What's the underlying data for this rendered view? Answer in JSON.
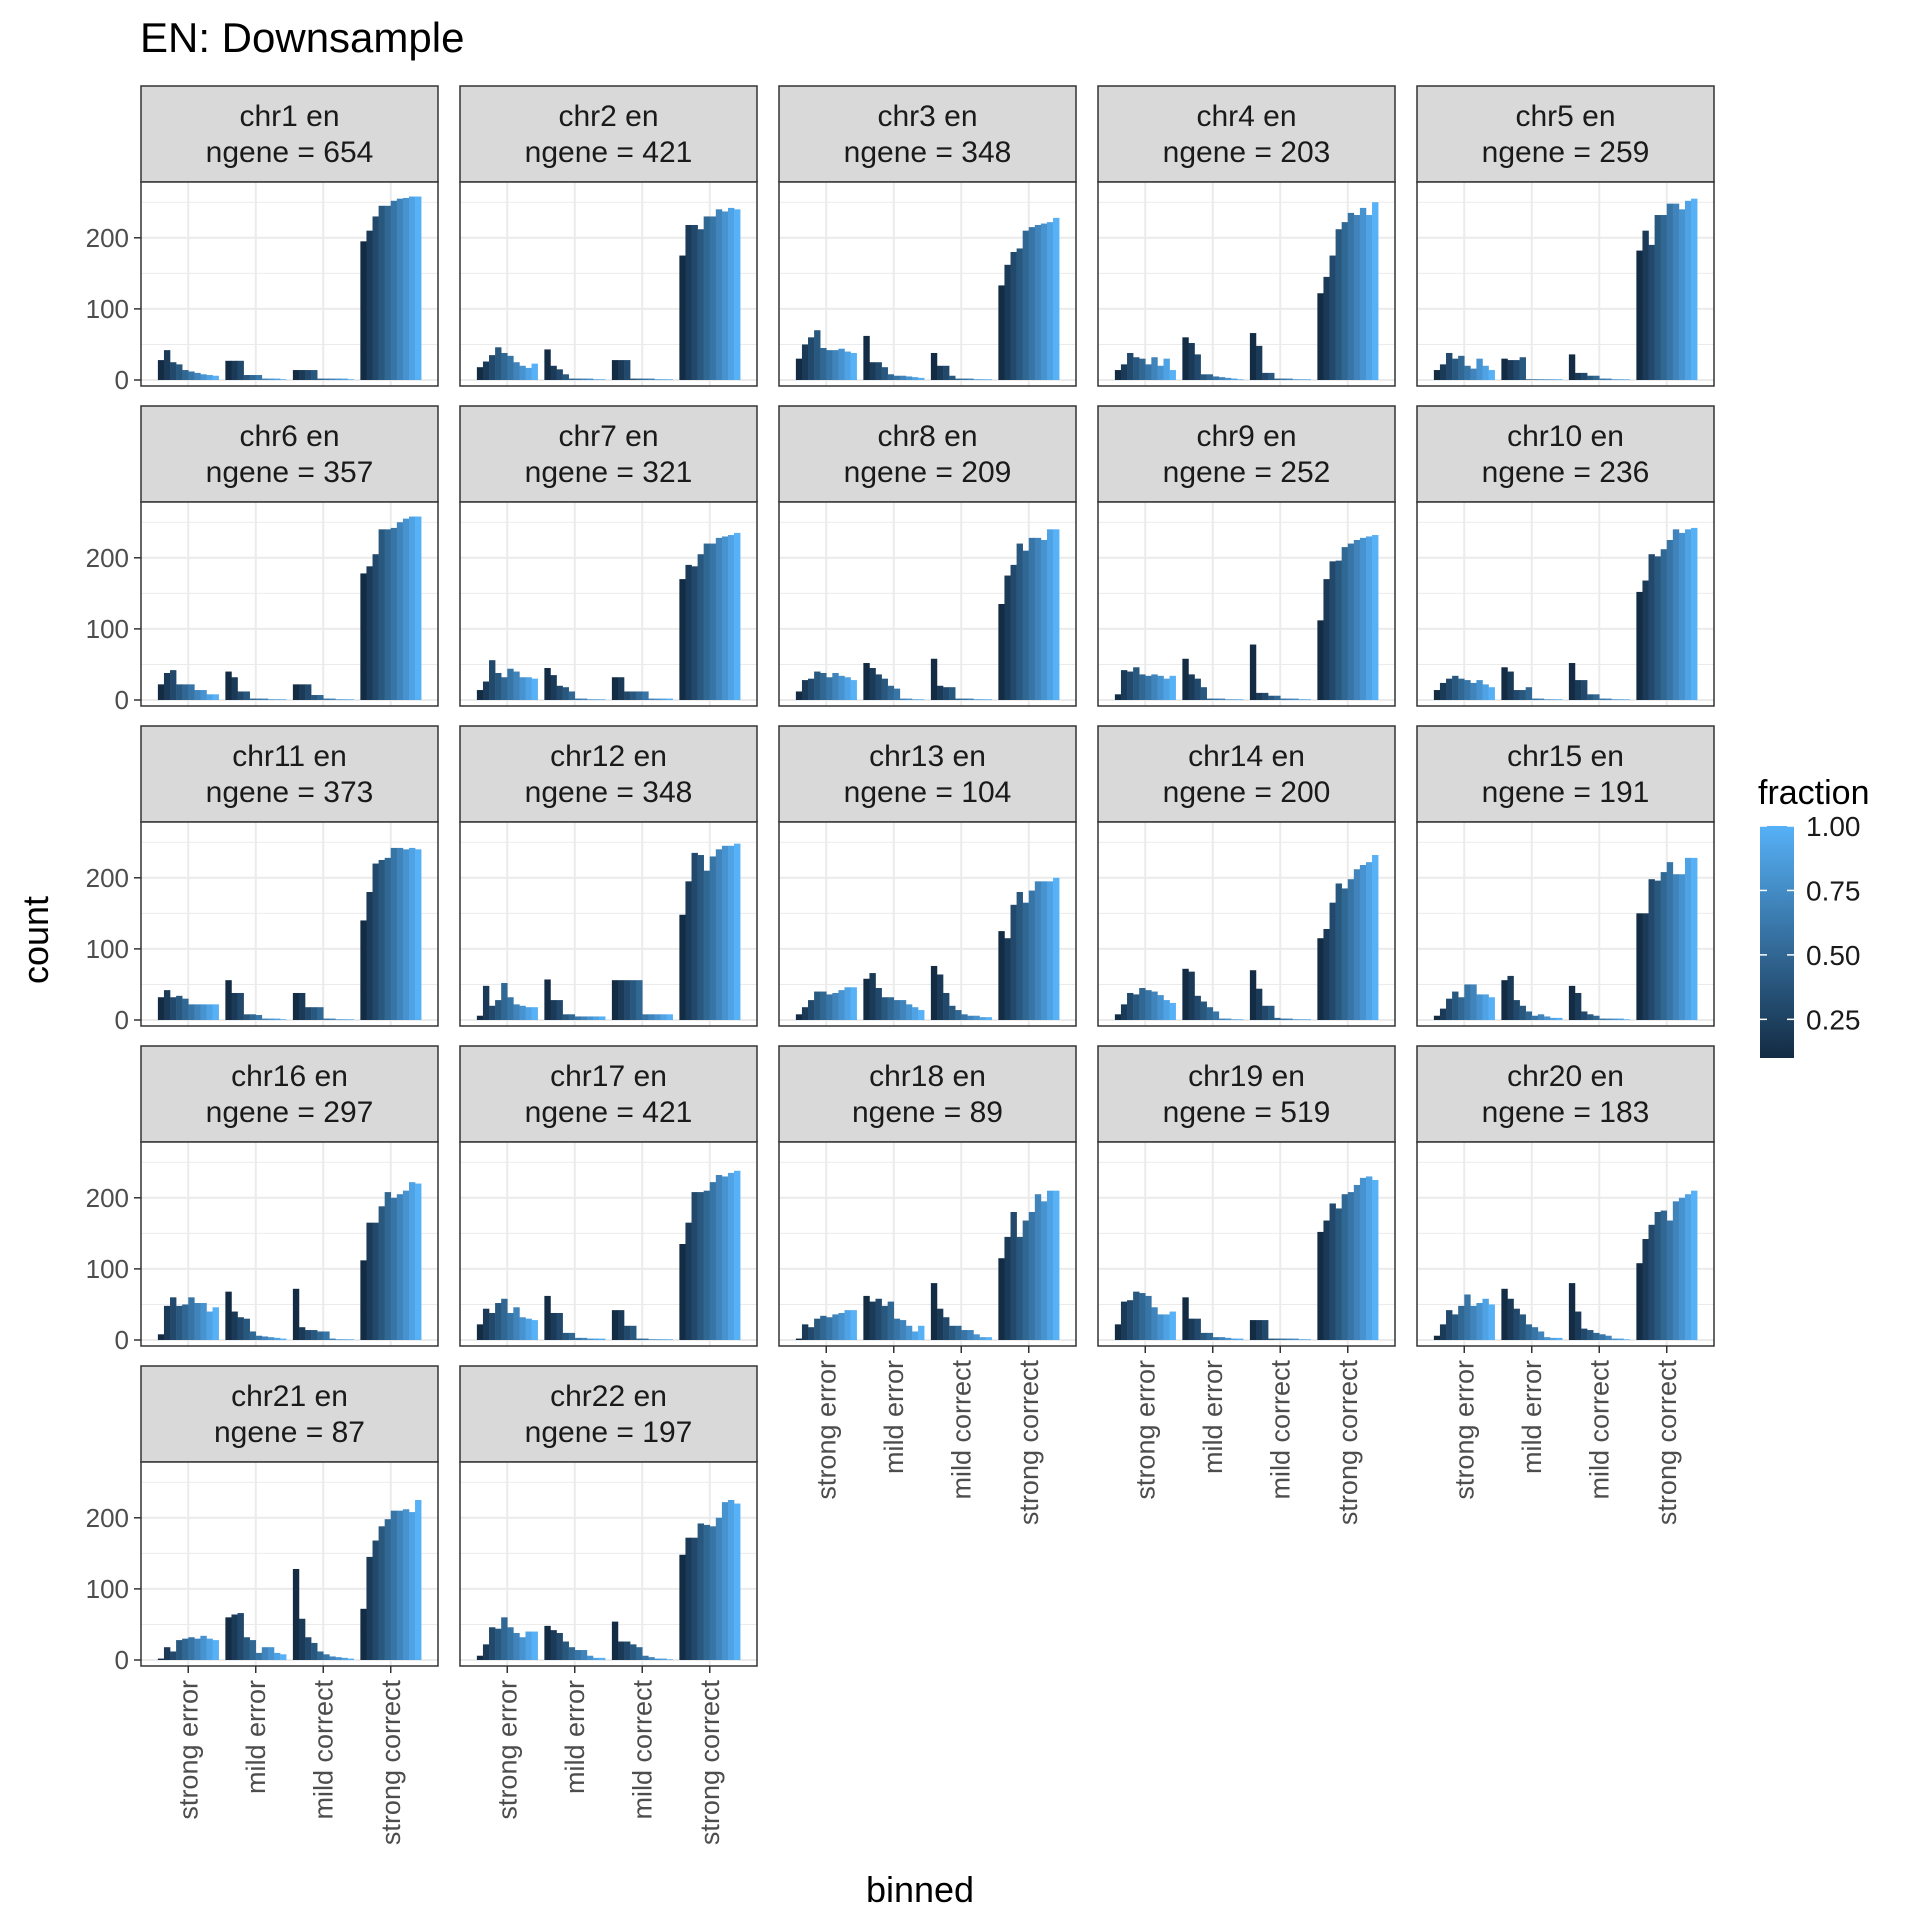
{
  "chart_data": {
    "type": "bar",
    "title": "EN: Downsample",
    "xlabel": "binned",
    "ylabel": "count",
    "categories": [
      "strong error",
      "mild error",
      "mild correct",
      "strong correct"
    ],
    "y_ticks": [
      "0",
      "100",
      "200"
    ],
    "ylim": [
      0,
      270
    ],
    "grid": true,
    "legend": {
      "title": "fraction",
      "position": "right",
      "ticks": [
        "0.25",
        "0.50",
        "0.75",
        "1.00"
      ],
      "range": [
        0.1,
        1.0
      ],
      "low_color": "#132B43",
      "high_color": "#56B1F7"
    },
    "fractions": [
      0.1,
      0.2,
      0.3,
      0.4,
      0.5,
      0.6,
      0.7,
      0.8,
      0.9,
      1.0
    ],
    "panels": [
      {
        "strip": "chr1 en",
        "ngene": "ngene = 654",
        "values": [
          [
            28,
            42,
            25,
            22,
            14,
            12,
            10,
            8,
            7,
            6
          ],
          [
            27,
            27,
            27,
            7,
            7,
            7,
            2,
            2,
            2,
            1
          ],
          [
            14,
            14,
            14,
            14,
            2,
            2,
            2,
            2,
            2,
            1
          ],
          [
            195,
            210,
            230,
            245,
            245,
            252,
            255,
            256,
            258,
            258
          ]
        ]
      },
      {
        "strip": "chr2 en",
        "ngene": "ngene = 421",
        "values": [
          [
            18,
            26,
            35,
            46,
            38,
            34,
            25,
            20,
            17,
            23
          ],
          [
            43,
            20,
            15,
            8,
            2,
            2,
            2,
            2,
            1,
            1
          ],
          [
            28,
            28,
            28,
            2,
            2,
            2,
            2,
            1,
            1,
            1
          ],
          [
            175,
            218,
            218,
            212,
            230,
            230,
            240,
            237,
            242,
            240
          ]
        ]
      },
      {
        "strip": "chr3 en",
        "ngene": "ngene = 348",
        "values": [
          [
            30,
            50,
            60,
            70,
            45,
            42,
            42,
            44,
            40,
            38
          ],
          [
            62,
            25,
            25,
            18,
            8,
            6,
            6,
            5,
            4,
            3
          ],
          [
            38,
            20,
            20,
            6,
            2,
            2,
            2,
            1,
            1,
            1
          ],
          [
            133,
            162,
            180,
            185,
            210,
            215,
            218,
            220,
            222,
            228
          ]
        ]
      },
      {
        "strip": "chr4 en",
        "ngene": "ngene = 203",
        "values": [
          [
            14,
            22,
            38,
            32,
            30,
            22,
            32,
            20,
            30,
            14
          ],
          [
            60,
            52,
            36,
            8,
            8,
            5,
            4,
            3,
            2,
            1
          ],
          [
            66,
            48,
            10,
            10,
            2,
            2,
            2,
            1,
            1,
            1
          ],
          [
            122,
            145,
            175,
            212,
            222,
            235,
            232,
            242,
            232,
            250
          ]
        ]
      },
      {
        "strip": "chr5 en",
        "ngene": "ngene = 259",
        "values": [
          [
            14,
            22,
            38,
            30,
            34,
            20,
            16,
            30,
            20,
            14
          ],
          [
            30,
            28,
            28,
            32,
            1,
            1,
            1,
            1,
            1,
            1
          ],
          [
            36,
            10,
            10,
            6,
            6,
            2,
            2,
            1,
            1,
            1
          ],
          [
            182,
            210,
            190,
            232,
            232,
            248,
            248,
            240,
            252,
            255
          ]
        ]
      },
      {
        "strip": "chr6 en",
        "ngene": "ngene = 357",
        "values": [
          [
            22,
            38,
            42,
            22,
            22,
            22,
            14,
            14,
            8,
            8
          ],
          [
            40,
            32,
            12,
            12,
            2,
            2,
            2,
            1,
            1,
            1
          ],
          [
            22,
            22,
            22,
            7,
            7,
            2,
            2,
            1,
            1,
            1
          ],
          [
            178,
            188,
            205,
            240,
            240,
            242,
            250,
            255,
            258,
            258
          ]
        ]
      },
      {
        "strip": "chr7 en",
        "ngene": "ngene = 321",
        "values": [
          [
            14,
            26,
            56,
            38,
            32,
            44,
            40,
            32,
            32,
            30
          ],
          [
            45,
            35,
            20,
            18,
            12,
            2,
            2,
            1,
            1,
            1
          ],
          [
            32,
            32,
            12,
            12,
            12,
            12,
            2,
            2,
            2,
            2
          ],
          [
            170,
            190,
            188,
            205,
            220,
            220,
            228,
            230,
            232,
            235
          ]
        ]
      },
      {
        "strip": "chr8 en",
        "ngene": "ngene = 209",
        "values": [
          [
            12,
            28,
            30,
            40,
            38,
            32,
            38,
            34,
            32,
            28
          ],
          [
            52,
            45,
            36,
            30,
            20,
            16,
            2,
            2,
            1,
            1
          ],
          [
            58,
            20,
            18,
            18,
            2,
            2,
            2,
            1,
            1,
            1
          ],
          [
            135,
            175,
            190,
            220,
            210,
            228,
            228,
            225,
            240,
            240
          ]
        ]
      },
      {
        "strip": "chr9 en",
        "ngene": "ngene = 252",
        "values": [
          [
            8,
            42,
            40,
            46,
            36,
            34,
            36,
            34,
            30,
            34
          ],
          [
            58,
            36,
            30,
            18,
            2,
            2,
            2,
            1,
            1,
            1
          ],
          [
            78,
            10,
            10,
            6,
            6,
            2,
            2,
            2,
            1,
            1
          ],
          [
            112,
            170,
            195,
            196,
            215,
            220,
            225,
            228,
            230,
            232
          ]
        ]
      },
      {
        "strip": "chr10 en",
        "ngene": "ngene = 236",
        "values": [
          [
            14,
            24,
            30,
            34,
            30,
            28,
            24,
            28,
            22,
            18
          ],
          [
            46,
            40,
            14,
            14,
            18,
            2,
            2,
            1,
            1,
            1
          ],
          [
            52,
            28,
            28,
            8,
            8,
            2,
            2,
            1,
            1,
            1
          ],
          [
            152,
            168,
            205,
            202,
            212,
            225,
            240,
            235,
            240,
            242
          ]
        ]
      },
      {
        "strip": "chr11 en",
        "ngene": "ngene = 373",
        "values": [
          [
            32,
            42,
            32,
            34,
            30,
            22,
            22,
            22,
            22,
            22
          ],
          [
            56,
            38,
            38,
            8,
            8,
            7,
            2,
            2,
            2,
            1
          ],
          [
            38,
            38,
            18,
            18,
            18,
            2,
            2,
            1,
            1,
            1
          ],
          [
            140,
            180,
            220,
            225,
            228,
            242,
            242,
            240,
            242,
            240
          ]
        ]
      },
      {
        "strip": "chr12 en",
        "ngene": "ngene = 348",
        "values": [
          [
            6,
            48,
            20,
            28,
            52,
            32,
            22,
            20,
            18,
            18
          ],
          [
            57,
            28,
            28,
            8,
            8,
            5,
            5,
            5,
            5,
            5
          ],
          [
            56,
            56,
            56,
            56,
            56,
            8,
            8,
            8,
            8,
            8
          ],
          [
            148,
            195,
            235,
            232,
            210,
            230,
            240,
            245,
            245,
            248
          ]
        ]
      },
      {
        "strip": "chr13 en",
        "ngene": "ngene = 104",
        "values": [
          [
            8,
            18,
            28,
            40,
            40,
            36,
            38,
            42,
            46,
            46
          ],
          [
            58,
            66,
            45,
            32,
            32,
            28,
            28,
            22,
            18,
            14
          ],
          [
            76,
            64,
            38,
            20,
            14,
            8,
            6,
            6,
            4,
            4
          ],
          [
            125,
            115,
            162,
            180,
            165,
            182,
            195,
            195,
            195,
            200
          ]
        ]
      },
      {
        "strip": "chr14 en",
        "ngene": "ngene = 200",
        "values": [
          [
            8,
            22,
            38,
            36,
            45,
            42,
            40,
            35,
            28,
            24
          ],
          [
            72,
            68,
            34,
            26,
            18,
            12,
            2,
            2,
            1,
            1
          ],
          [
            70,
            44,
            20,
            20,
            3,
            2,
            2,
            1,
            1,
            1
          ],
          [
            115,
            128,
            165,
            192,
            185,
            198,
            212,
            218,
            222,
            232
          ]
        ]
      },
      {
        "strip": "chr15 en",
        "ngene": "ngene = 191",
        "values": [
          [
            6,
            16,
            30,
            40,
            32,
            50,
            50,
            36,
            36,
            32
          ],
          [
            56,
            62,
            28,
            20,
            12,
            6,
            8,
            5,
            3,
            3
          ],
          [
            48,
            38,
            12,
            8,
            6,
            2,
            2,
            2,
            2,
            1
          ],
          [
            150,
            150,
            198,
            196,
            208,
            222,
            205,
            205,
            228,
            228
          ]
        ]
      },
      {
        "strip": "chr16 en",
        "ngene": "ngene = 297",
        "values": [
          [
            8,
            48,
            60,
            48,
            50,
            60,
            52,
            52,
            40,
            46
          ],
          [
            68,
            40,
            32,
            30,
            12,
            6,
            5,
            4,
            3,
            2
          ],
          [
            72,
            18,
            14,
            14,
            12,
            12,
            2,
            1,
            1,
            1
          ],
          [
            112,
            165,
            165,
            188,
            208,
            200,
            205,
            210,
            222,
            220
          ]
        ]
      },
      {
        "strip": "chr17 en",
        "ngene": "ngene = 421",
        "values": [
          [
            22,
            44,
            38,
            52,
            58,
            38,
            46,
            32,
            30,
            28
          ],
          [
            62,
            38,
            38,
            10,
            10,
            3,
            3,
            2,
            2,
            2
          ],
          [
            42,
            42,
            20,
            20,
            2,
            2,
            1,
            1,
            1,
            1
          ],
          [
            135,
            165,
            208,
            208,
            210,
            222,
            232,
            230,
            235,
            238
          ]
        ]
      },
      {
        "strip": "chr18 en",
        "ngene": "ngene = 89",
        "values": [
          [
            2,
            22,
            18,
            30,
            34,
            32,
            36,
            38,
            42,
            42
          ],
          [
            62,
            54,
            58,
            48,
            54,
            30,
            28,
            20,
            12,
            20
          ],
          [
            80,
            44,
            32,
            20,
            20,
            14,
            14,
            8,
            4,
            4
          ],
          [
            115,
            145,
            180,
            145,
            168,
            180,
            205,
            195,
            210,
            210
          ]
        ]
      },
      {
        "strip": "chr19 en",
        "ngene": "ngene = 519",
        "values": [
          [
            22,
            54,
            56,
            68,
            66,
            62,
            46,
            36,
            36,
            40
          ],
          [
            60,
            30,
            30,
            10,
            10,
            4,
            4,
            3,
            2,
            2
          ],
          [
            28,
            28,
            28,
            2,
            2,
            2,
            2,
            2,
            1,
            1
          ],
          [
            152,
            168,
            192,
            185,
            205,
            208,
            218,
            228,
            230,
            225
          ]
        ]
      },
      {
        "strip": "chr20 en",
        "ngene": "ngene = 183",
        "values": [
          [
            6,
            22,
            42,
            36,
            48,
            64,
            48,
            52,
            58,
            50
          ],
          [
            72,
            58,
            44,
            36,
            22,
            18,
            12,
            4,
            3,
            3
          ],
          [
            80,
            40,
            16,
            14,
            10,
            8,
            6,
            2,
            2,
            1
          ],
          [
            108,
            142,
            162,
            180,
            182,
            168,
            195,
            200,
            205,
            210
          ]
        ]
      },
      {
        "strip": "chr21 en",
        "ngene": "ngene = 87",
        "values": [
          [
            2,
            18,
            12,
            28,
            30,
            32,
            30,
            34,
            30,
            28
          ],
          [
            60,
            64,
            66,
            32,
            28,
            10,
            18,
            18,
            10,
            8
          ],
          [
            128,
            58,
            32,
            24,
            12,
            8,
            5,
            4,
            3,
            2
          ],
          [
            72,
            145,
            168,
            188,
            198,
            210,
            210,
            212,
            208,
            225
          ]
        ]
      },
      {
        "strip": "chr22 en",
        "ngene": "ngene = 197",
        "values": [
          [
            6,
            22,
            46,
            44,
            60,
            46,
            38,
            32,
            40,
            40
          ],
          [
            48,
            42,
            38,
            26,
            18,
            14,
            14,
            6,
            3,
            3
          ],
          [
            54,
            26,
            26,
            22,
            18,
            6,
            4,
            2,
            2,
            1
          ],
          [
            148,
            172,
            172,
            192,
            190,
            188,
            200,
            222,
            225,
            220
          ]
        ]
      }
    ]
  }
}
